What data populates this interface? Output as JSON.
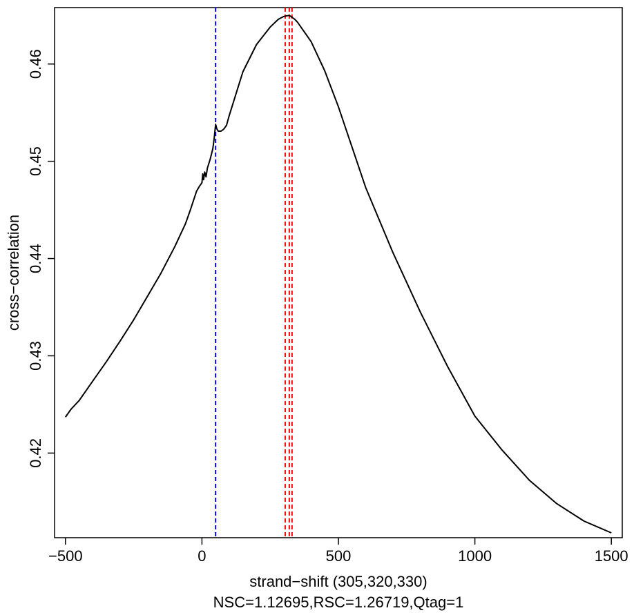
{
  "chart_data": {
    "type": "line",
    "xlabel": "strand−shift (305,320,330)",
    "ylabel": "cross−correlation",
    "subtitle": "NSC=1.12695,RSC=1.26719,Qtag=1",
    "xlim": [
      -540,
      1540
    ],
    "ylim": [
      0.4113,
      0.4658
    ],
    "x_ticks": [
      -500,
      0,
      500,
      1000,
      1500
    ],
    "x_tick_labels": [
      "−500",
      "0",
      "500",
      "1000",
      "1500"
    ],
    "y_ticks": [
      0.42,
      0.43,
      0.44,
      0.45,
      0.46
    ],
    "y_tick_labels": [
      "0.42",
      "0.43",
      "0.44",
      "0.45",
      "0.46"
    ],
    "grid": false,
    "line_color": "#000000",
    "series": [
      {
        "x": [
          -500,
          -480,
          -450,
          -400,
          -350,
          -300,
          -250,
          -200,
          -150,
          -100,
          -60,
          -40,
          -20,
          -10,
          0,
          3,
          6,
          10,
          15,
          20,
          30,
          40,
          45,
          50,
          55,
          60,
          70,
          80,
          90,
          100,
          150,
          200,
          250,
          280,
          300,
          320,
          340,
          350,
          400,
          450,
          500,
          600,
          700,
          800,
          900,
          1000,
          1100,
          1200,
          1300,
          1400,
          1500
        ],
        "y": [
          0.4237,
          0.4245,
          0.4254,
          0.4274,
          0.4294,
          0.4315,
          0.4337,
          0.4361,
          0.4385,
          0.4412,
          0.4436,
          0.4452,
          0.4469,
          0.4474,
          0.4478,
          0.4487,
          0.4481,
          0.4489,
          0.4484,
          0.4493,
          0.4502,
          0.4513,
          0.4524,
          0.4538,
          0.4533,
          0.4531,
          0.4531,
          0.4533,
          0.4537,
          0.4547,
          0.4592,
          0.462,
          0.4638,
          0.4646,
          0.4649,
          0.465,
          0.4646,
          0.4643,
          0.4623,
          0.4593,
          0.4556,
          0.4473,
          0.4406,
          0.4345,
          0.4289,
          0.4238,
          0.4203,
          0.4172,
          0.4148,
          0.413,
          0.4118
        ]
      }
    ],
    "vlines": [
      {
        "x": 50,
        "color": "#0000ff",
        "style": "dashed"
      },
      {
        "x": 305,
        "color": "#ff0000",
        "style": "dashed"
      },
      {
        "x": 320,
        "color": "#ff0000",
        "style": "dashed"
      },
      {
        "x": 330,
        "color": "#ff0000",
        "style": "dashed"
      }
    ]
  }
}
